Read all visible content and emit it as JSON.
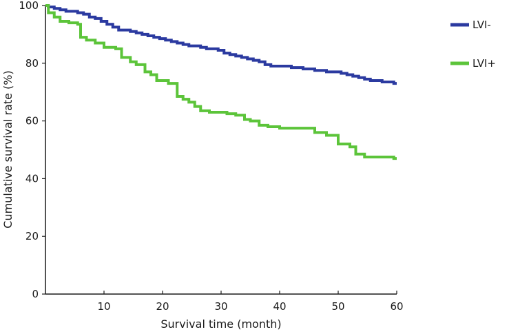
{
  "chart_data": {
    "type": "line",
    "title": "",
    "xlabel": "Survival time (month)",
    "ylabel": "Cumulative survival rate (%)",
    "xlim": [
      0,
      60
    ],
    "ylim": [
      0,
      100
    ],
    "xticks": [
      10,
      20,
      30,
      40,
      50,
      60
    ],
    "yticks": [
      0,
      20,
      40,
      60,
      80,
      100
    ],
    "grid": false,
    "legend_position": "right",
    "series": [
      {
        "name": "LVI-",
        "color": "#2b3aa0",
        "x": [
          0,
          0.5,
          1.5,
          2.5,
          3.5,
          4.5,
          5.5,
          6.5,
          7.5,
          8.5,
          9.5,
          10.5,
          11.5,
          12.5,
          13.5,
          14.5,
          15.5,
          16.5,
          17.5,
          18.5,
          19.5,
          20.5,
          21.5,
          22.5,
          23.5,
          24.5,
          25.5,
          26.5,
          27.5,
          28.5,
          29.5,
          30.5,
          31.5,
          32.5,
          33.5,
          34.5,
          35.5,
          36.5,
          37.5,
          38.5,
          40,
          42,
          44,
          46,
          48,
          49.5,
          50.5,
          51.5,
          52.5,
          53.5,
          54.5,
          55.5,
          56.5,
          57.5,
          58.5,
          59.5,
          60
        ],
        "y": [
          100,
          99.5,
          99,
          98.5,
          98,
          98,
          97.5,
          97,
          96,
          95.5,
          94.5,
          93.5,
          92.5,
          91.5,
          91.5,
          91,
          90.5,
          90,
          89.5,
          89,
          88.5,
          88,
          87.5,
          87,
          86.5,
          86,
          86,
          85.5,
          85,
          85,
          84.5,
          83.5,
          83,
          82.5,
          82,
          81.5,
          81,
          80.5,
          79.5,
          79,
          79,
          78.5,
          78,
          77.5,
          77,
          77,
          76.5,
          76,
          75.5,
          75,
          74.5,
          74,
          74,
          73.5,
          73.5,
          73,
          73
        ]
      },
      {
        "name": "LVI+",
        "color": "#5cc43a",
        "x": [
          0,
          0.5,
          1.5,
          2.5,
          4,
          5.5,
          6,
          7,
          8.5,
          10,
          12,
          13,
          14.5,
          15.5,
          17,
          18,
          19,
          21,
          22.5,
          23.5,
          24.5,
          25.5,
          26.5,
          28,
          31,
          32.5,
          34,
          35,
          36.5,
          38,
          40,
          44,
          46,
          48,
          50,
          52,
          53,
          54.5,
          56,
          58,
          59.5,
          60
        ],
        "y": [
          100,
          97.5,
          96,
          94.5,
          94,
          93.5,
          89,
          88,
          87,
          85.5,
          85,
          82,
          80.5,
          79.5,
          77,
          76,
          74,
          73,
          68.5,
          67.5,
          66.5,
          65,
          63.5,
          63,
          62.5,
          62,
          60.5,
          60,
          58.5,
          58,
          57.5,
          57.5,
          56,
          55,
          52,
          51,
          48.5,
          47.5,
          47.5,
          47.5,
          47,
          47
        ]
      }
    ]
  }
}
